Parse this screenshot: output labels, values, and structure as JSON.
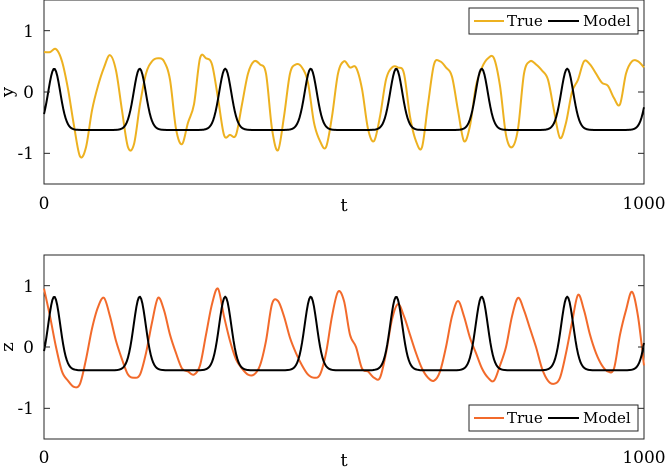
{
  "chart_data": [
    {
      "type": "line",
      "xlabel": "t",
      "ylabel": "y",
      "xlim": [
        0,
        1000
      ],
      "ylim": [
        -1.5,
        1.5
      ],
      "xticks": [
        "0",
        "1000"
      ],
      "yticks": [
        "1",
        "0",
        "-1"
      ],
      "grid": false,
      "legend_position": "top-right",
      "series": [
        {
          "name": "True",
          "color": "#EDB120",
          "x": [
            0,
            10,
            20,
            30,
            40,
            50,
            60,
            70,
            80,
            90,
            100,
            110,
            120,
            130,
            140,
            150,
            160,
            170,
            180,
            190,
            200,
            210,
            220,
            230,
            240,
            250,
            260,
            270,
            280,
            290,
            300,
            310,
            320,
            330,
            340,
            350,
            360,
            370,
            380,
            390,
            400,
            410,
            420,
            430,
            440,
            450,
            460,
            470,
            480,
            490,
            500,
            510,
            520,
            530,
            540,
            550,
            560,
            570,
            580,
            590,
            600,
            610,
            620,
            630,
            640,
            650,
            660,
            670,
            680,
            690,
            700,
            710,
            720,
            730,
            740,
            750,
            760,
            770,
            780,
            790,
            800,
            810,
            820,
            830,
            840,
            850,
            860,
            870,
            880,
            890,
            900,
            910,
            920,
            930,
            940,
            950,
            960,
            970,
            980,
            990,
            1000
          ],
          "values": [
            0.65,
            0.65,
            0.7,
            0.5,
            0.05,
            -0.55,
            -1.05,
            -0.9,
            -0.3,
            0.1,
            0.4,
            0.6,
            0.35,
            -0.3,
            -0.9,
            -0.85,
            -0.2,
            0.3,
            0.5,
            0.55,
            0.5,
            0.2,
            -0.6,
            -0.85,
            -0.5,
            -0.2,
            0.55,
            0.55,
            0.45,
            -0.1,
            -0.7,
            -0.7,
            -0.7,
            -0.2,
            0.3,
            0.5,
            0.45,
            0.3,
            -0.6,
            -0.95,
            -0.4,
            0.3,
            0.45,
            0.4,
            0.15,
            -0.5,
            -0.8,
            -0.9,
            -0.4,
            0.3,
            0.5,
            0.4,
            0.4,
            0.05,
            -0.6,
            -0.8,
            -0.4,
            0.2,
            0.4,
            0.4,
            0.3,
            -0.4,
            -0.8,
            -0.9,
            -0.2,
            0.45,
            0.5,
            0.4,
            0.25,
            -0.3,
            -0.8,
            -0.55,
            0.1,
            0.4,
            0.55,
            0.55,
            0.1,
            -0.7,
            -0.9,
            -0.6,
            0.3,
            0.5,
            0.45,
            0.35,
            0.2,
            -0.3,
            -0.75,
            -0.5,
            0.0,
            0.2,
            0.5,
            0.45,
            0.3,
            0.15,
            0.1,
            -0.1,
            -0.2,
            0.3,
            0.5,
            0.5,
            0.4
          ]
        },
        {
          "name": "Model",
          "color": "#000000",
          "period": 142.5,
          "phase": 0.82,
          "mean": -0.12,
          "amplitude": 0.5,
          "shape_k": 5.0,
          "x_start": 0,
          "x_end": 1000
        }
      ]
    },
    {
      "type": "line",
      "xlabel": "t",
      "ylabel": "z",
      "xlim": [
        0,
        1000
      ],
      "ylim": [
        -1.5,
        1.5
      ],
      "xticks": [
        "0",
        "1000"
      ],
      "yticks": [
        "1",
        "0",
        "-1"
      ],
      "grid": false,
      "legend_position": "bottom-right",
      "series": [
        {
          "name": "True",
          "color": "#F26A2B",
          "x": [
            0,
            10,
            20,
            30,
            40,
            50,
            60,
            70,
            80,
            90,
            100,
            110,
            120,
            130,
            140,
            150,
            160,
            170,
            180,
            190,
            200,
            210,
            220,
            230,
            240,
            250,
            260,
            270,
            280,
            290,
            300,
            310,
            320,
            330,
            340,
            350,
            360,
            370,
            380,
            390,
            400,
            410,
            420,
            430,
            440,
            450,
            460,
            470,
            480,
            490,
            500,
            510,
            520,
            530,
            540,
            550,
            560,
            570,
            580,
            590,
            600,
            610,
            620,
            630,
            640,
            650,
            660,
            670,
            680,
            690,
            700,
            710,
            720,
            730,
            740,
            750,
            760,
            770,
            780,
            790,
            800,
            810,
            820,
            830,
            840,
            850,
            860,
            870,
            880,
            890,
            900,
            910,
            920,
            930,
            940,
            950,
            960,
            970,
            980,
            990,
            1000
          ],
          "values": [
            0.95,
            0.5,
            0.0,
            -0.4,
            -0.55,
            -0.65,
            -0.6,
            -0.2,
            0.3,
            0.65,
            0.8,
            0.5,
            0.1,
            -0.2,
            -0.45,
            -0.5,
            -0.45,
            -0.1,
            0.4,
            0.8,
            0.6,
            0.2,
            -0.1,
            -0.35,
            -0.4,
            -0.45,
            -0.3,
            0.2,
            0.7,
            0.95,
            0.5,
            0.1,
            -0.2,
            -0.35,
            -0.45,
            -0.45,
            -0.3,
            0.1,
            0.7,
            0.75,
            0.5,
            0.15,
            -0.1,
            -0.3,
            -0.45,
            -0.5,
            -0.45,
            -0.1,
            0.5,
            0.9,
            0.75,
            0.2,
            0.0,
            -0.35,
            -0.4,
            -0.5,
            -0.5,
            -0.1,
            0.45,
            0.7,
            0.5,
            0.2,
            -0.1,
            -0.35,
            -0.5,
            -0.55,
            -0.4,
            0.0,
            0.5,
            0.75,
            0.5,
            0.15,
            -0.1,
            -0.35,
            -0.5,
            -0.55,
            -0.3,
            0.0,
            0.5,
            0.8,
            0.6,
            0.3,
            0.0,
            -0.35,
            -0.55,
            -0.6,
            -0.5,
            -0.1,
            0.4,
            0.85,
            0.6,
            0.2,
            -0.1,
            -0.3,
            -0.4,
            -0.35,
            0.2,
            0.6,
            0.9,
            0.5,
            -0.3
          ]
        },
        {
          "name": "Model",
          "color": "#000000",
          "period": 142.5,
          "phase": 0.82,
          "mean": 0.22,
          "amplitude": 0.6,
          "shape_k": 5.0,
          "x_start": 0,
          "x_end": 1000
        }
      ]
    }
  ],
  "legend": {
    "top": {
      "true_label": "True",
      "model_label": "Model"
    },
    "bottom": {
      "true_label": "True",
      "model_label": "Model"
    }
  }
}
